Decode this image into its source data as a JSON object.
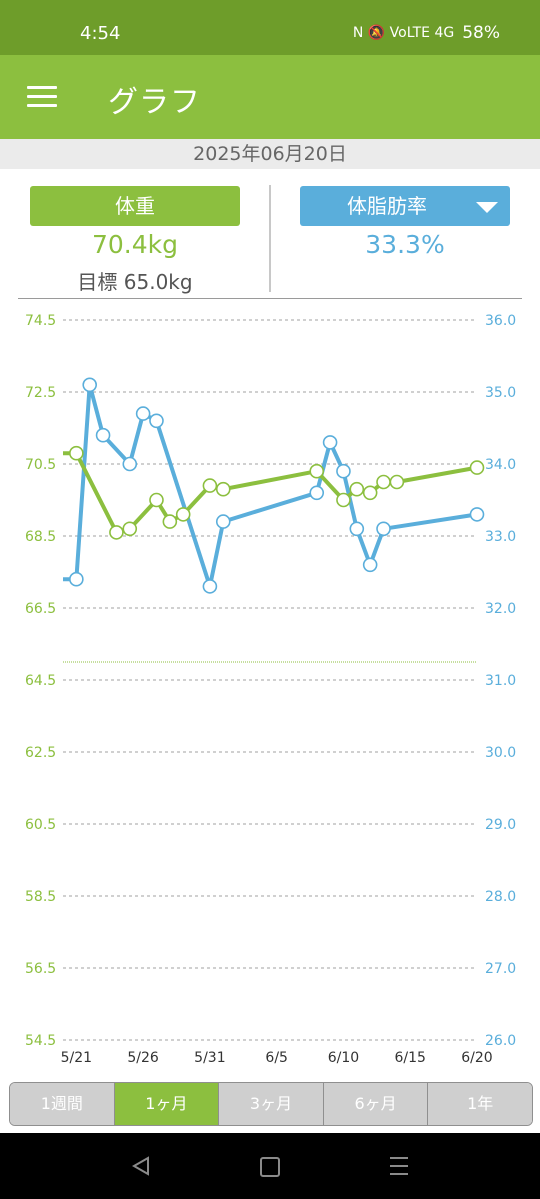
{
  "status_bar": {
    "time": "4:54",
    "indicators": "N 🔕 VoLTE 4G",
    "battery": "58%"
  },
  "app_bar": {
    "menu_icon": "hamburger-icon",
    "title": "グラフ"
  },
  "date": "2025年06月20日",
  "weight": {
    "label": "体重",
    "value": "70.4kg",
    "goal": "目標 65.0kg"
  },
  "body_fat": {
    "label": "体脂肪率",
    "value": "33.3%"
  },
  "tabs": [
    {
      "label": "1週間",
      "active": false
    },
    {
      "label": "1ヶ月",
      "active": true
    },
    {
      "label": "3ヶ月",
      "active": false
    },
    {
      "label": "6ヶ月",
      "active": false
    },
    {
      "label": "1年",
      "active": false
    }
  ],
  "colors": {
    "green": "#8cbf3f",
    "blue": "#5aaedb"
  },
  "chart_data": {
    "type": "line",
    "x_range": [
      "5/20",
      "6/20"
    ],
    "x_tick_labels": [
      "5/21",
      "5/26",
      "5/31",
      "6/5",
      "6/10",
      "6/15",
      "6/20"
    ],
    "y_left": {
      "range": [
        54.5,
        74.5
      ],
      "ticks": [
        "74.5",
        "72.5",
        "70.5",
        "68.5",
        "66.5",
        "64.5",
        "62.5",
        "60.5",
        "58.5",
        "56.5",
        "54.5"
      ]
    },
    "y_right": {
      "range": [
        26.0,
        36.0
      ],
      "ticks": [
        "36.0",
        "35.0",
        "34.0",
        "33.0",
        "32.0",
        "31.0",
        "30.0",
        "29.0",
        "28.0",
        "27.0",
        "26.0"
      ]
    },
    "goal_weight": 65.0,
    "series": [
      {
        "axis": "left",
        "color": "#8cbf3f",
        "points": [
          {
            "x": "5/21",
            "y": 70.8
          },
          {
            "x": "5/24",
            "y": 68.6
          },
          {
            "x": "5/25",
            "y": 68.7
          },
          {
            "x": "5/27",
            "y": 69.5
          },
          {
            "x": "5/28",
            "y": 68.9
          },
          {
            "x": "5/29",
            "y": 69.1
          },
          {
            "x": "5/31",
            "y": 69.9
          },
          {
            "x": "6/1",
            "y": 69.8
          },
          {
            "x": "6/8",
            "y": 70.3
          },
          {
            "x": "6/10",
            "y": 69.5
          },
          {
            "x": "6/11",
            "y": 69.8
          },
          {
            "x": "6/12",
            "y": 69.7
          },
          {
            "x": "6/13",
            "y": 70.0
          },
          {
            "x": "6/14",
            "y": 70.0
          },
          {
            "x": "6/20",
            "y": 70.4
          }
        ]
      },
      {
        "axis": "right",
        "color": "#5aaedb",
        "points": [
          {
            "x": "5/21",
            "y": 32.4
          },
          {
            "x": "5/22",
            "y": 35.1
          },
          {
            "x": "5/23",
            "y": 34.4
          },
          {
            "x": "5/25",
            "y": 34.0
          },
          {
            "x": "5/26",
            "y": 34.7
          },
          {
            "x": "5/27",
            "y": 34.6
          },
          {
            "x": "5/31",
            "y": 32.3
          },
          {
            "x": "6/1",
            "y": 33.2
          },
          {
            "x": "6/8",
            "y": 33.6
          },
          {
            "x": "6/9",
            "y": 34.3
          },
          {
            "x": "6/10",
            "y": 33.9
          },
          {
            "x": "6/11",
            "y": 33.1
          },
          {
            "x": "6/12",
            "y": 32.6
          },
          {
            "x": "6/13",
            "y": 33.1
          },
          {
            "x": "6/20",
            "y": 33.3
          }
        ]
      }
    ]
  }
}
